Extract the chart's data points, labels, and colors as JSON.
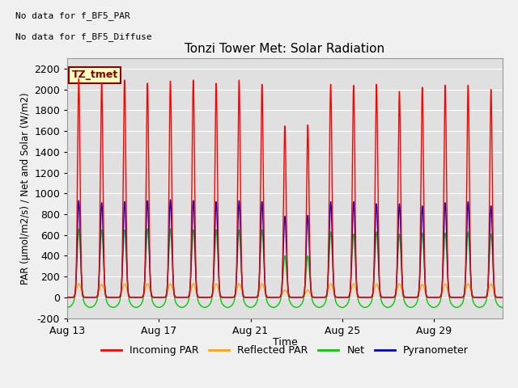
{
  "title": "Tonzi Tower Met: Solar Radiation",
  "xlabel": "Time",
  "ylabel": "PAR (μmol/m2/s) / Net and Solar (W/m2)",
  "ylim": [
    -200,
    2300
  ],
  "yticks": [
    -200,
    0,
    200,
    400,
    600,
    800,
    1000,
    1200,
    1400,
    1600,
    1800,
    2000,
    2200
  ],
  "bg_color": "#e0e0e0",
  "fig_color": "#f0f0f0",
  "no_data_text1": "No data for f_BF5_PAR",
  "no_data_text2": "No data for f_BF5_Diffuse",
  "box_label": "TZ_tmet",
  "box_facecolor": "#ffffc0",
  "box_edgecolor": "#8b0000",
  "colors": {
    "incoming": "#ff0000",
    "reflected": "#ffa500",
    "net": "#00cc00",
    "pyranometer": "#0000cc"
  },
  "legend_labels": [
    "Incoming PAR",
    "Reflected PAR",
    "Net",
    "Pyranometer"
  ],
  "n_days": 19,
  "start_day": 13,
  "x_tick_days": [
    13,
    17,
    21,
    25,
    29
  ],
  "incoming_peaks": [
    2100,
    2060,
    2090,
    2060,
    2080,
    2090,
    2060,
    2090,
    2050,
    1650,
    1660,
    2050,
    2040,
    2050,
    1980,
    2020,
    2040,
    2040,
    2000
  ],
  "reflected_peaks": [
    130,
    125,
    130,
    130,
    130,
    130,
    130,
    130,
    130,
    70,
    70,
    130,
    130,
    125,
    130,
    125,
    130,
    130,
    130
  ],
  "net_peaks": [
    650,
    640,
    640,
    650,
    650,
    640,
    640,
    640,
    640,
    390,
    390,
    620,
    600,
    620,
    600,
    610,
    610,
    620,
    600
  ],
  "pyranometer_peaks": [
    930,
    910,
    920,
    930,
    940,
    930,
    920,
    930,
    920,
    780,
    790,
    920,
    920,
    900,
    900,
    880,
    910,
    920,
    880
  ],
  "net_night": -100
}
